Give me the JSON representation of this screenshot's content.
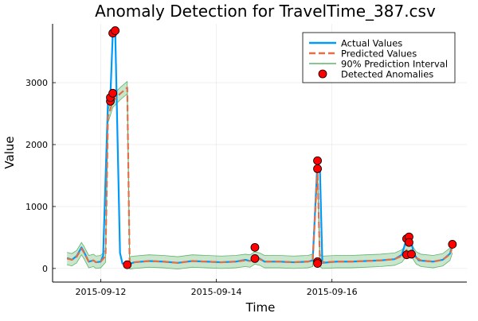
{
  "chart_data": {
    "type": "line",
    "title": "Anomaly Detection for TravelTime_387.csv",
    "xlabel": "Time",
    "ylabel": "Value",
    "x_ticks": [
      "2015-09-12",
      "2015-09-14",
      "2015-09-16"
    ],
    "y_ticks": [
      0,
      1000,
      2000,
      3000
    ],
    "xlim": [
      "2015-09-11 04:00",
      "2015-09-18 08:00"
    ],
    "ylim": [
      -220,
      3950
    ],
    "grid": true,
    "legend_position": "top-right",
    "series": [
      {
        "name": "Actual Values",
        "style": "solid",
        "color": "#009AFA",
        "points": [
          [
            "2015-09-11 10:00",
            170
          ],
          [
            "2015-09-11 12:00",
            140
          ],
          [
            "2015-09-11 14:00",
            200
          ],
          [
            "2015-09-11 16:00",
            340
          ],
          [
            "2015-09-11 17:00",
            270
          ],
          [
            "2015-09-11 19:00",
            110
          ],
          [
            "2015-09-11 21:00",
            130
          ],
          [
            "2015-09-11 22:00",
            100
          ],
          [
            "2015-09-12 00:00",
            110
          ],
          [
            "2015-09-12 01:00",
            210
          ],
          [
            "2015-09-12 03:00",
            2700
          ],
          [
            "2015-09-12 04:00",
            2780
          ],
          [
            "2015-09-12 05:00",
            3800
          ],
          [
            "2015-09-12 06:00",
            3850
          ],
          [
            "2015-09-12 08:00",
            250
          ],
          [
            "2015-09-12 09:00",
            80
          ],
          [
            "2015-09-12 11:00",
            60
          ],
          [
            "2015-09-12 14:00",
            100
          ],
          [
            "2015-09-12 20:00",
            120
          ],
          [
            "2015-09-13 02:00",
            110
          ],
          [
            "2015-09-13 08:00",
            90
          ],
          [
            "2015-09-13 14:00",
            120
          ],
          [
            "2015-09-13 20:00",
            110
          ],
          [
            "2015-09-14 02:00",
            100
          ],
          [
            "2015-09-14 08:00",
            110
          ],
          [
            "2015-09-14 12:00",
            140
          ],
          [
            "2015-09-14 14:00",
            120
          ],
          [
            "2015-09-14 16:00",
            180
          ],
          [
            "2015-09-14 18:00",
            160
          ],
          [
            "2015-09-14 20:00",
            110
          ],
          [
            "2015-09-15 02:00",
            110
          ],
          [
            "2015-09-15 08:00",
            100
          ],
          [
            "2015-09-15 14:00",
            110
          ],
          [
            "2015-09-15 16:00",
            130
          ],
          [
            "2015-09-15 18:00",
            1740
          ],
          [
            "2015-09-15 19:00",
            1610
          ],
          [
            "2015-09-15 20:00",
            90
          ],
          [
            "2015-09-16 02:00",
            110
          ],
          [
            "2015-09-16 08:00",
            110
          ],
          [
            "2015-09-16 14:00",
            120
          ],
          [
            "2015-09-16 20:00",
            130
          ],
          [
            "2015-09-17 02:00",
            150
          ],
          [
            "2015-09-17 05:00",
            220
          ],
          [
            "2015-09-17 07:00",
            480
          ],
          [
            "2015-09-17 08:00",
            510
          ],
          [
            "2015-09-17 09:00",
            420
          ],
          [
            "2015-09-17 10:00",
            230
          ],
          [
            "2015-09-17 12:00",
            130
          ],
          [
            "2015-09-17 18:00",
            110
          ],
          [
            "2015-09-17 22:00",
            140
          ],
          [
            "2015-09-18 01:00",
            240
          ],
          [
            "2015-09-18 02:00",
            390
          ]
        ]
      },
      {
        "name": "Predicted Values",
        "style": "dashed",
        "color": "#E26F46",
        "points": [
          [
            "2015-09-11 10:00",
            160
          ],
          [
            "2015-09-11 12:00",
            140
          ],
          [
            "2015-09-11 14:00",
            190
          ],
          [
            "2015-09-11 16:00",
            320
          ],
          [
            "2015-09-11 17:00",
            260
          ],
          [
            "2015-09-11 19:00",
            110
          ],
          [
            "2015-09-11 21:00",
            130
          ],
          [
            "2015-09-11 22:00",
            100
          ],
          [
            "2015-09-12 00:00",
            110
          ],
          [
            "2015-09-12 02:00",
            200
          ],
          [
            "2015-09-12 03:00",
            2450
          ],
          [
            "2015-09-12 05:00",
            2700
          ],
          [
            "2015-09-12 08:00",
            2820
          ],
          [
            "2015-09-12 11:00",
            2920
          ],
          [
            "2015-09-12 12:00",
            90
          ],
          [
            "2015-09-12 14:00",
            100
          ],
          [
            "2015-09-12 20:00",
            120
          ],
          [
            "2015-09-13 02:00",
            110
          ],
          [
            "2015-09-13 08:00",
            90
          ],
          [
            "2015-09-13 14:00",
            120
          ],
          [
            "2015-09-13 20:00",
            110
          ],
          [
            "2015-09-14 02:00",
            100
          ],
          [
            "2015-09-14 08:00",
            110
          ],
          [
            "2015-09-14 12:00",
            130
          ],
          [
            "2015-09-14 14:00",
            120
          ],
          [
            "2015-09-14 16:00",
            170
          ],
          [
            "2015-09-14 18:00",
            150
          ],
          [
            "2015-09-14 20:00",
            110
          ],
          [
            "2015-09-15 02:00",
            110
          ],
          [
            "2015-09-15 08:00",
            100
          ],
          [
            "2015-09-15 14:00",
            110
          ],
          [
            "2015-09-15 16:00",
            130
          ],
          [
            "2015-09-15 18:00",
            1600
          ],
          [
            "2015-09-15 19:00",
            130
          ],
          [
            "2015-09-15 20:00",
            100
          ],
          [
            "2015-09-16 02:00",
            110
          ],
          [
            "2015-09-16 08:00",
            110
          ],
          [
            "2015-09-16 14:00",
            120
          ],
          [
            "2015-09-16 20:00",
            130
          ],
          [
            "2015-09-17 02:00",
            150
          ],
          [
            "2015-09-17 05:00",
            200
          ],
          [
            "2015-09-17 07:00",
            300
          ],
          [
            "2015-09-17 09:00",
            290
          ],
          [
            "2015-09-17 11:00",
            170
          ],
          [
            "2015-09-17 13:00",
            130
          ],
          [
            "2015-09-17 18:00",
            110
          ],
          [
            "2015-09-17 22:00",
            140
          ],
          [
            "2015-09-18 01:00",
            230
          ],
          [
            "2015-09-18 02:00",
            350
          ]
        ]
      },
      {
        "name": "90% Prediction Interval",
        "style": "band",
        "color": "#3DA44D",
        "half_width": 100
      }
    ],
    "anomalies": {
      "name": "Detected Anomalies",
      "color": "#FF0000",
      "points": [
        [
          "2015-09-12 04:00",
          2700
        ],
        [
          "2015-09-12 04:00",
          2760
        ],
        [
          "2015-09-12 05:00",
          2830
        ],
        [
          "2015-09-12 05:00",
          3800
        ],
        [
          "2015-09-12 06:00",
          3840
        ],
        [
          "2015-09-12 11:00",
          60
        ],
        [
          "2015-09-14 16:00",
          340
        ],
        [
          "2015-09-14 16:00",
          160
        ],
        [
          "2015-09-15 18:00",
          1740
        ],
        [
          "2015-09-15 18:00",
          1610
        ],
        [
          "2015-09-15 18:00",
          110
        ],
        [
          "2015-09-15 18:00",
          80
        ],
        [
          "2015-09-17 07:00",
          480
        ],
        [
          "2015-09-17 07:00",
          220
        ],
        [
          "2015-09-17 08:00",
          510
        ],
        [
          "2015-09-17 08:00",
          420
        ],
        [
          "2015-09-17 09:00",
          230
        ],
        [
          "2015-09-18 02:00",
          390
        ]
      ]
    }
  }
}
